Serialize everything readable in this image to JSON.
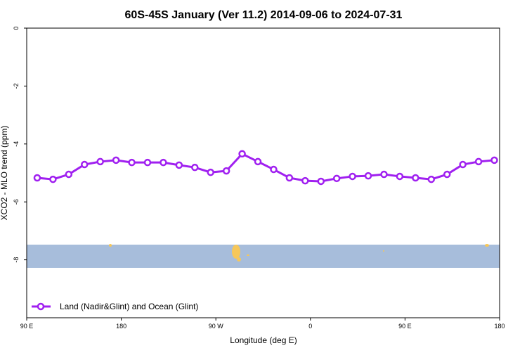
{
  "chart_data": {
    "type": "line",
    "title": "60S-45S January (Ver 11.2)   2014-09-06 to 2024-07-31",
    "x_label": "Longitude (deg E)",
    "y_label": "XCO2 - MLO trend (ppm)",
    "x": [
      100,
      115,
      130,
      145,
      160,
      175,
      190,
      205,
      220,
      235,
      250,
      265,
      280,
      295,
      310,
      325,
      340,
      355,
      370,
      385,
      400,
      415,
      430,
      445,
      460,
      475,
      490,
      505,
      520,
      535
    ],
    "series": [
      {
        "name": "Land (Nadir&Glint) and Ocean (Glint)",
        "color": "#a020f0",
        "values": [
          -5.17,
          -5.22,
          -5.05,
          -4.71,
          -4.61,
          -4.56,
          -4.64,
          -4.64,
          -4.64,
          -4.73,
          -4.81,
          -4.98,
          -4.93,
          -4.34,
          -4.61,
          -4.88,
          -5.17,
          -5.27,
          -5.29,
          -5.19,
          -5.12,
          -5.1,
          -5.05,
          -5.12,
          -5.17,
          -5.22,
          -5.05,
          -4.71,
          -4.61,
          -4.56
        ]
      }
    ],
    "xlim": [
      90,
      540
    ],
    "xticks": [
      {
        "value": 90,
        "label": "90 E"
      },
      180,
      {
        "value": 270,
        "label": "90 W"
      },
      {
        "value": 360,
        "label": "0"
      },
      {
        "value": 450,
        "label": "90 E"
      },
      {
        "value": 540,
        "label": "180"
      }
    ],
    "ylim": [
      -10,
      0
    ],
    "yticks": [
      0,
      -2,
      -4,
      -6,
      -8
    ],
    "legend": "bottom-left"
  }
}
